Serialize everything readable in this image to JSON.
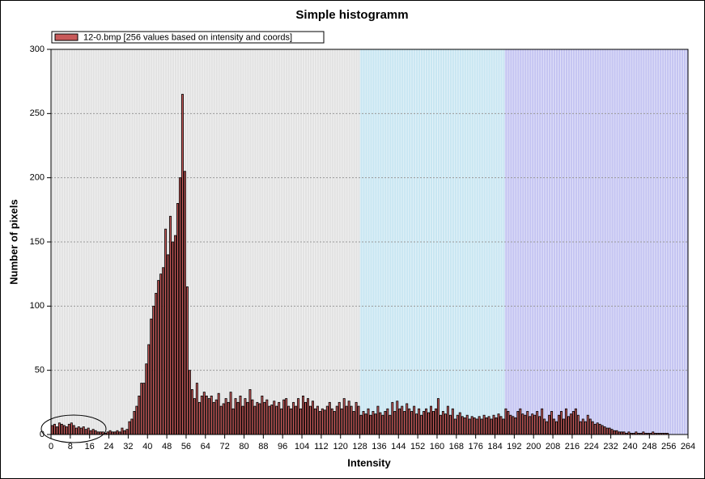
{
  "chart_data": {
    "type": "histogram",
    "title": "Simple histogramm",
    "x_label": "Intensity",
    "y_label": "Number of pixels",
    "legend": "12-0.bmp [256 values based on intensity and coords]",
    "legend_position": "top-left",
    "color": "#c85a5a",
    "edge_color": "#000000",
    "regions": [
      {
        "from": 0,
        "to": 128,
        "color": "#e2e2e2"
      },
      {
        "from": 128,
        "to": 188,
        "color": "#c8e6f2"
      },
      {
        "from": 188,
        "to": 264,
        "color": "#c4c4f2"
      }
    ],
    "bins": [
      0,
      1,
      2,
      3,
      4,
      5,
      6,
      7,
      8,
      9,
      10,
      11,
      12,
      13,
      14,
      15,
      16,
      17,
      18,
      19,
      20,
      21,
      22,
      23,
      24,
      25,
      26,
      27,
      28,
      29,
      30,
      31,
      32,
      33,
      34,
      35,
      36,
      37,
      38,
      39,
      40,
      41,
      42,
      43,
      44,
      45,
      46,
      47,
      48,
      49,
      50,
      51,
      52,
      53,
      54,
      55,
      56,
      57,
      58,
      59,
      60,
      61,
      62,
      63,
      64,
      65,
      66,
      67,
      68,
      69,
      70,
      71,
      72,
      73,
      74,
      75,
      76,
      77,
      78,
      79,
      80,
      81,
      82,
      83,
      84,
      85,
      86,
      87,
      88,
      89,
      90,
      91,
      92,
      93,
      94,
      95,
      96,
      97,
      98,
      99,
      100,
      101,
      102,
      103,
      104,
      105,
      106,
      107,
      108,
      109,
      110,
      111,
      112,
      113,
      114,
      115,
      116,
      117,
      118,
      119,
      120,
      121,
      122,
      123,
      124,
      125,
      126,
      127,
      128,
      129,
      130,
      131,
      132,
      133,
      134,
      135,
      136,
      137,
      138,
      139,
      140,
      141,
      142,
      143,
      144,
      145,
      146,
      147,
      148,
      149,
      150,
      151,
      152,
      153,
      154,
      155,
      156,
      157,
      158,
      159,
      160,
      161,
      162,
      163,
      164,
      165,
      166,
      167,
      168,
      169,
      170,
      171,
      172,
      173,
      174,
      175,
      176,
      177,
      178,
      179,
      180,
      181,
      182,
      183,
      184,
      185,
      186,
      187,
      188,
      189,
      190,
      191,
      192,
      193,
      194,
      195,
      196,
      197,
      198,
      199,
      200,
      201,
      202,
      203,
      204,
      205,
      206,
      207,
      208,
      209,
      210,
      211,
      212,
      213,
      214,
      215,
      216,
      217,
      218,
      219,
      220,
      221,
      222,
      223,
      224,
      225,
      226,
      227,
      228,
      229,
      230,
      231,
      232,
      233,
      234,
      235,
      236,
      237,
      238,
      239,
      240,
      241,
      242,
      243,
      244,
      245,
      246,
      247,
      248,
      249,
      250,
      251,
      252,
      253,
      254,
      255,
      256
    ],
    "values": [
      7,
      8,
      6,
      9,
      8,
      7,
      6,
      8,
      9,
      7,
      5,
      6,
      5,
      6,
      4,
      5,
      3,
      4,
      3,
      2,
      2,
      2,
      1,
      2,
      3,
      2,
      2,
      3,
      2,
      5,
      3,
      4,
      10,
      12,
      18,
      22,
      30,
      40,
      40,
      55,
      70,
      90,
      100,
      110,
      120,
      125,
      130,
      160,
      140,
      170,
      150,
      155,
      180,
      200,
      265,
      205,
      115,
      50,
      35,
      28,
      40,
      25,
      30,
      33,
      30,
      28,
      30,
      25,
      27,
      32,
      22,
      24,
      28,
      25,
      33,
      20,
      28,
      25,
      30,
      22,
      28,
      25,
      35,
      27,
      22,
      25,
      24,
      30,
      25,
      27,
      22,
      23,
      26,
      22,
      25,
      20,
      27,
      28,
      22,
      20,
      25,
      22,
      28,
      20,
      30,
      25,
      28,
      22,
      26,
      20,
      22,
      18,
      20,
      19,
      22,
      25,
      20,
      18,
      22,
      25,
      20,
      28,
      22,
      26,
      22,
      18,
      25,
      22,
      15,
      18,
      16,
      20,
      15,
      18,
      16,
      22,
      17,
      15,
      18,
      20,
      15,
      25,
      18,
      26,
      20,
      22,
      18,
      24,
      20,
      18,
      22,
      16,
      20,
      15,
      18,
      20,
      17,
      22,
      18,
      20,
      28,
      15,
      18,
      16,
      22,
      15,
      20,
      12,
      15,
      17,
      14,
      13,
      15,
      12,
      14,
      13,
      12,
      14,
      12,
      15,
      13,
      14,
      12,
      15,
      13,
      16,
      14,
      12,
      20,
      18,
      15,
      14,
      13,
      18,
      20,
      16,
      15,
      18,
      14,
      16,
      15,
      18,
      14,
      20,
      12,
      10,
      15,
      18,
      12,
      10,
      15,
      18,
      12,
      20,
      14,
      16,
      18,
      20,
      15,
      10,
      12,
      10,
      15,
      12,
      10,
      8,
      9,
      8,
      7,
      6,
      5,
      5,
      4,
      3,
      3,
      2,
      2,
      2,
      1,
      2,
      1,
      1,
      2,
      1,
      1,
      2,
      1,
      1,
      1,
      2,
      1,
      1,
      1,
      1,
      1,
      1
    ],
    "xlim": [
      0,
      264
    ],
    "xticks": [
      0,
      8,
      16,
      24,
      32,
      40,
      48,
      56,
      64,
      72,
      80,
      88,
      96,
      104,
      112,
      120,
      128,
      136,
      144,
      152,
      160,
      168,
      176,
      184,
      192,
      200,
      208,
      216,
      224,
      232,
      240,
      248,
      256,
      264
    ],
    "ylim": [
      0,
      300
    ],
    "yticks": [
      0,
      50,
      100,
      150,
      200,
      250,
      300
    ],
    "grid": true
  }
}
